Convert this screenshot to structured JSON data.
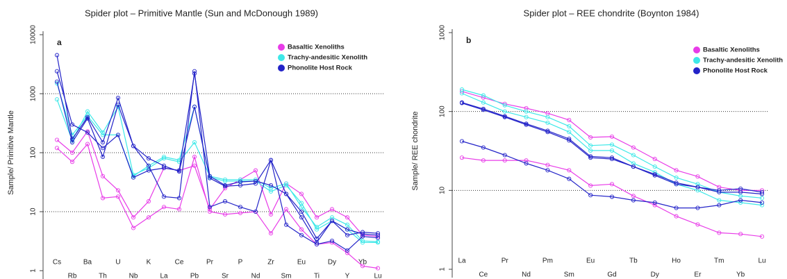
{
  "chart_data": [
    {
      "type": "line",
      "title": "Spider plot –  Primitive Mantle (Sun  and  McDonough 1989)",
      "panel_label": "a",
      "ylabel": "Sample/ Primitive Mantle",
      "log_scale": true,
      "grid": true,
      "legend": "top-right",
      "ylim": [
        1,
        10000
      ],
      "yticks": [
        1,
        10,
        100,
        1000,
        10000
      ],
      "categories": [
        "Cs",
        "Rb",
        "Ba",
        "Th",
        "U",
        "Nb",
        "K",
        "La",
        "Ce",
        "Pb",
        "Pr",
        "Sr",
        "P",
        "Nd",
        "Zr",
        "Sm",
        "Eu",
        "Ti",
        "Dy",
        "Y",
        "Yb",
        "Lu"
      ],
      "series": [
        {
          "name": "Basaltic Xenoliths",
          "color": "#e83ce8",
          "samples": [
            [
              120,
              70,
              140,
              17,
              18,
              5.3,
              8,
              12,
              11,
              85,
              10,
              9,
              9.5,
              10,
              4.3,
              11,
              5,
              2.8,
              3,
              2,
              1.2,
              1.1
            ],
            [
              165,
              100,
              230,
              40,
              23,
              8,
              15,
              55,
              50,
              60,
              11,
              25,
              35,
              50,
              9,
              30,
              20,
              8,
              11,
              8,
              4,
              3.8
            ]
          ]
        },
        {
          "name": "Trachy-andesitic Xenolith",
          "color": "#3ee8e8",
          "samples": [
            [
              800,
              160,
              500,
              220,
              600,
              42,
              55,
              80,
              70,
              150,
              40,
              35,
              35,
              35,
              25,
              30,
              12,
              5.5,
              8,
              6,
              3.2,
              3.1
            ],
            [
              1500,
              200,
              420,
              200,
              200,
              40,
              60,
              85,
              75,
              600,
              38,
              33,
              33,
              33,
              22,
              28,
              14,
              5,
              7,
              5,
              3,
              3
            ]
          ]
        },
        {
          "name": "Phonolite Host Rock",
          "color": "#2323c8",
          "samples": [
            [
              4500,
              170,
              400,
              150,
              850,
              130,
              60,
              18,
              17,
              2400,
              12,
              15,
              12,
              10,
              75,
              6,
              4,
              2.8,
              3.2,
              2.2,
              3.8,
              3.6
            ],
            [
              2400,
              300,
              220,
              120,
              200,
              38,
              50,
              55,
              50,
              2200,
              40,
              28,
              32,
              33,
              28,
              20,
              10,
              3.5,
              7,
              4,
              4.5,
              4.3
            ],
            [
              1600,
              150,
              380,
              85,
              650,
              130,
              80,
              60,
              48,
              600,
              37,
              27,
              28,
              30,
              75,
              20,
              8,
              3,
              7,
              5,
              4.2,
              4
            ]
          ]
        }
      ]
    },
    {
      "type": "line",
      "title": "Spider plot –  REE chondrite (Boynton 1984)",
      "panel_label": "b",
      "ylabel": "Sample/ REE chondrite",
      "log_scale": true,
      "grid": true,
      "legend": "top-right",
      "ylim": [
        1,
        1000
      ],
      "yticks": [
        1,
        10,
        100,
        1000
      ],
      "categories": [
        "La",
        "Ce",
        "Pr",
        "Nd",
        "Pm",
        "Sm",
        "Eu",
        "Gd",
        "Tb",
        "Dy",
        "Ho",
        "Er",
        "Tm",
        "Yb",
        "Lu"
      ],
      "series": [
        {
          "name": "Basaltic Xenoliths",
          "color": "#e83ce8",
          "samples": [
            [
              180,
              150,
              125,
              110,
              95,
              78,
              47,
              48,
              35,
              25,
              18,
              15,
              11,
              10,
              10
            ],
            [
              26,
              24,
              24,
              24,
              21,
              18,
              11.5,
              12,
              8.5,
              6.5,
              4.7,
              3.7,
              2.9,
              2.8,
              2.6
            ]
          ]
        },
        {
          "name": "Trachy-andesitic Xenolith",
          "color": "#3ee8e8",
          "samples": [
            [
              190,
              160,
              120,
              100,
              85,
              65,
              37,
              38,
              28,
              20,
              14.5,
              12,
              9.5,
              8.5,
              8
            ],
            [
              170,
              130,
              100,
              85,
              72,
              55,
              32,
              32,
              22,
              17,
              12,
              10,
              7.5,
              7,
              6.5
            ]
          ]
        },
        {
          "name": "Phonolite Host Rock",
          "color": "#2323c8",
          "samples": [
            [
              130,
              108,
              87,
              70,
              57,
              45,
              27,
              26,
              20,
              16,
              12.5,
              11,
              10,
              10.5,
              9.5
            ],
            [
              128,
              105,
              85,
              68,
              55,
              43,
              26,
              25,
              20,
              15.5,
              12,
              11,
              9.5,
              9.5,
              9
            ],
            [
              42,
              35,
              28,
              22,
              18,
              14,
              8.7,
              8.3,
              7.5,
              7,
              6,
              6,
              6.5,
              7.5,
              7
            ]
          ]
        }
      ]
    }
  ]
}
